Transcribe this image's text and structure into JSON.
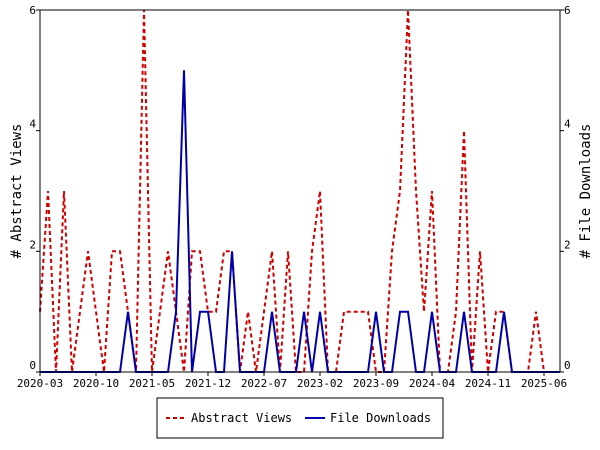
{
  "chart_data": {
    "type": "line",
    "title": "",
    "xlabel": "",
    "ylabel_left": "# Abstract Views",
    "ylabel_right": "# File Downloads",
    "ylim": [
      0,
      6
    ],
    "yticks": [
      0,
      2,
      4,
      6
    ],
    "xticks": [
      "2020-03",
      "2020-10",
      "2021-05",
      "2021-12",
      "2022-07",
      "2023-02",
      "2023-09",
      "2024-04",
      "2024-11",
      "2025-06"
    ],
    "x_range": [
      "2020-03",
      "2025-08"
    ],
    "grid": false,
    "legend_position": "bottom-center",
    "x": [
      "2020-03",
      "2020-04",
      "2020-05",
      "2020-06",
      "2020-07",
      "2020-08",
      "2020-09",
      "2020-10",
      "2020-11",
      "2020-12",
      "2021-01",
      "2021-02",
      "2021-03",
      "2021-04",
      "2021-05",
      "2021-06",
      "2021-07",
      "2021-08",
      "2021-09",
      "2021-10",
      "2021-11",
      "2021-12",
      "2022-01",
      "2022-02",
      "2022-03",
      "2022-04",
      "2022-05",
      "2022-06",
      "2022-07",
      "2022-08",
      "2022-09",
      "2022-10",
      "2022-11",
      "2022-12",
      "2023-01",
      "2023-02",
      "2023-03",
      "2023-04",
      "2023-05",
      "2023-06",
      "2023-07",
      "2023-08",
      "2023-09",
      "2023-10",
      "2023-11",
      "2023-12",
      "2024-01",
      "2024-02",
      "2024-03",
      "2024-04",
      "2024-05",
      "2024-06",
      "2024-07",
      "2024-08",
      "2024-09",
      "2024-10",
      "2024-11",
      "2024-12",
      "2025-01",
      "2025-02",
      "2025-03",
      "2025-04",
      "2025-05",
      "2025-06",
      "2025-07",
      "2025-08"
    ],
    "series": [
      {
        "name": "Abstract Views",
        "color": "#cc0000",
        "style": "dashed",
        "axis": "left",
        "values": [
          1,
          3,
          0,
          3,
          0,
          1,
          2,
          1,
          0,
          2,
          2,
          1,
          0,
          6,
          0,
          1,
          2,
          1,
          0,
          2,
          2,
          1,
          1,
          2,
          2,
          0,
          1,
          0,
          1,
          2,
          0,
          2,
          0,
          0,
          2,
          3,
          0,
          0,
          1,
          1,
          1,
          1,
          0,
          0,
          2,
          3,
          6,
          3,
          1,
          3,
          0,
          0,
          1,
          4,
          0,
          2,
          0,
          1,
          1,
          0,
          0,
          0,
          1,
          0,
          0,
          0
        ]
      },
      {
        "name": "File Downloads",
        "color": "#0000aa",
        "style": "solid",
        "axis": "right",
        "values": [
          0,
          0,
          0,
          0,
          0,
          0,
          0,
          0,
          0,
          0,
          0,
          1,
          0,
          0,
          0,
          0,
          0,
          1,
          5,
          0,
          1,
          1,
          0,
          0,
          2,
          0,
          0,
          0,
          0,
          1,
          0,
          0,
          0,
          1,
          0,
          1,
          0,
          0,
          0,
          0,
          0,
          0,
          1,
          0,
          0,
          1,
          1,
          0,
          0,
          1,
          0,
          0,
          0,
          1,
          0,
          0,
          0,
          0,
          1,
          0,
          0,
          0,
          0,
          0,
          0,
          0
        ]
      }
    ]
  }
}
